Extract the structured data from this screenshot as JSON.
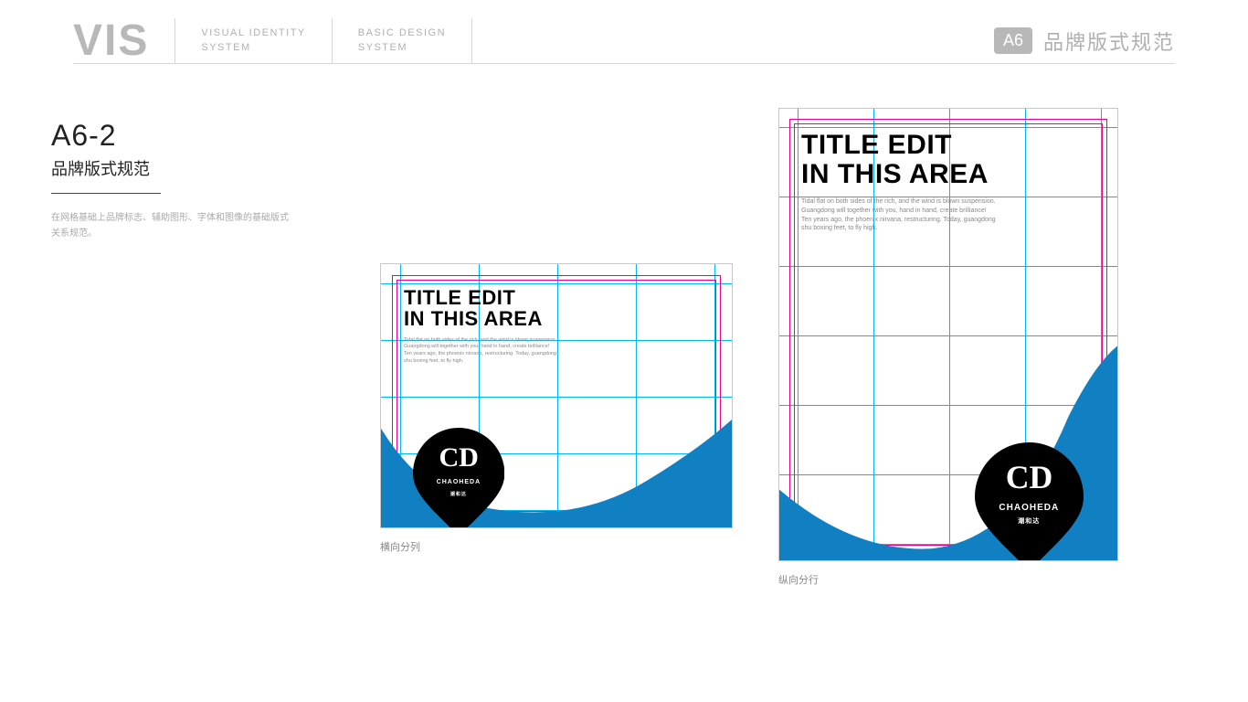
{
  "header": {
    "logo": "VIS",
    "col1_line1": "VISUAL IDENTITY",
    "col1_line2": "SYSTEM",
    "col2_line1": "BASIC DESIGN",
    "col2_line2": "SYSTEM",
    "badge": "A6",
    "title": "品牌版式规范"
  },
  "sidebar": {
    "code": "A6-2",
    "subtitle": "品牌版式规范",
    "desc": "在网格基础上品牌标志、辅助图形、字体和图像的基础版式关系规范。"
  },
  "mockup": {
    "title_line1": "TITLE EDIT",
    "title_line2": "IN THIS AREA",
    "body_line1": "Tidal flat on both sides of the rich, and the wind is blown suspension.",
    "body_line2": "Guangdong will together with you, hand in hand, create brilliance!",
    "body_line3": "Ten years ago, the phoenix nirvana, restructuring. Today, guangdong",
    "body_line4": "shu boxing feet, to fly high.",
    "logo_en": "CHAOHEDA",
    "logo_cn": "潮和达"
  },
  "captions": {
    "horizontal": "横向分列",
    "vertical": "纵向分行"
  },
  "colors": {
    "wave": "#1180c3",
    "pin": "#000000",
    "grid_cyan": "#00b9f2",
    "grid_magenta": "#ed008c",
    "border": "#c8c8c8"
  },
  "style": {
    "title_fontsize_h": 22,
    "title_fontsize_v": 30,
    "body_fontsize_h": 5.5,
    "body_fontsize_v": 7,
    "pin_label_en_fontsize_h": 7,
    "pin_label_cn_fontsize_h": 5,
    "pin_label_en_fontsize_v": 10,
    "pin_label_cn_fontsize_v": 7
  }
}
